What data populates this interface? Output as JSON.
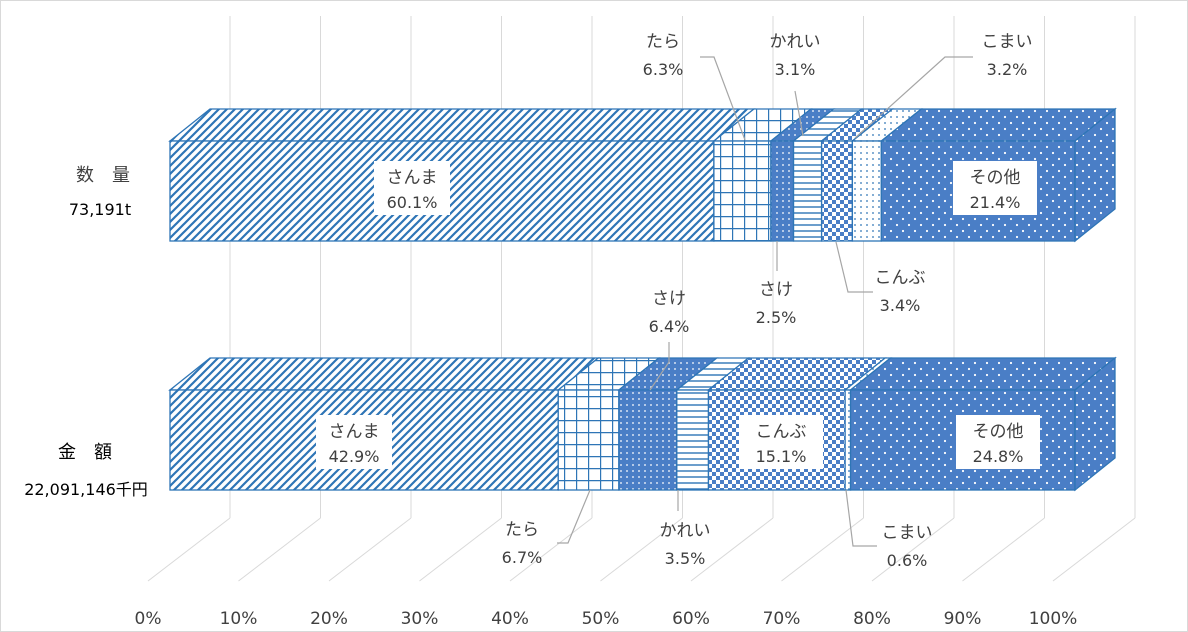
{
  "chart_data": {
    "type": "bar",
    "subtype": "100% stacked horizontal 3D bar",
    "x_tick_labels": [
      "0%",
      "10%",
      "20%",
      "30%",
      "40%",
      "50%",
      "60%",
      "70%",
      "80%",
      "90%",
      "100%"
    ],
    "xlim": [
      0,
      100
    ],
    "grid": true,
    "legend": "none (labels on segments)",
    "categories": [
      {
        "label": "数　量",
        "total": "73,191t"
      },
      {
        "label": "金　額",
        "total": "22,091,146千円"
      }
    ],
    "series": [
      {
        "name": "さんま",
        "pattern": "diagonal",
        "values": [
          60.1,
          42.9
        ],
        "labels": [
          "60.1%",
          "42.9%"
        ]
      },
      {
        "name": "たら",
        "pattern": "grid",
        "values": [
          6.3,
          6.7
        ],
        "labels": [
          "6.3%",
          "6.7%"
        ]
      },
      {
        "name": "さけ",
        "pattern": "dots",
        "values": [
          2.5,
          6.4
        ],
        "labels": [
          "2.5%",
          "6.4%"
        ]
      },
      {
        "name": "かれい",
        "pattern": "hlines",
        "values": [
          3.1,
          3.5
        ],
        "labels": [
          "3.1%",
          "3.5%"
        ]
      },
      {
        "name": "こんぶ",
        "pattern": "checker",
        "values": [
          3.4,
          15.1
        ],
        "labels": [
          "3.4%",
          "15.1%"
        ]
      },
      {
        "name": "こまい",
        "pattern": "sparse",
        "values": [
          3.2,
          0.6
        ],
        "labels": [
          "3.2%",
          "0.6%"
        ]
      },
      {
        "name": "その他",
        "pattern": "bigdots",
        "values": [
          21.4,
          24.8
        ],
        "labels": [
          "21.4%",
          "24.8%"
        ]
      }
    ],
    "colors": {
      "stroke": "#2e75b6",
      "fill_dark": "#4a7ec6",
      "fill_light": "#ffffff",
      "grid": "#d9d9d9",
      "text": "#404040",
      "leader": "#a6a6a6"
    }
  }
}
